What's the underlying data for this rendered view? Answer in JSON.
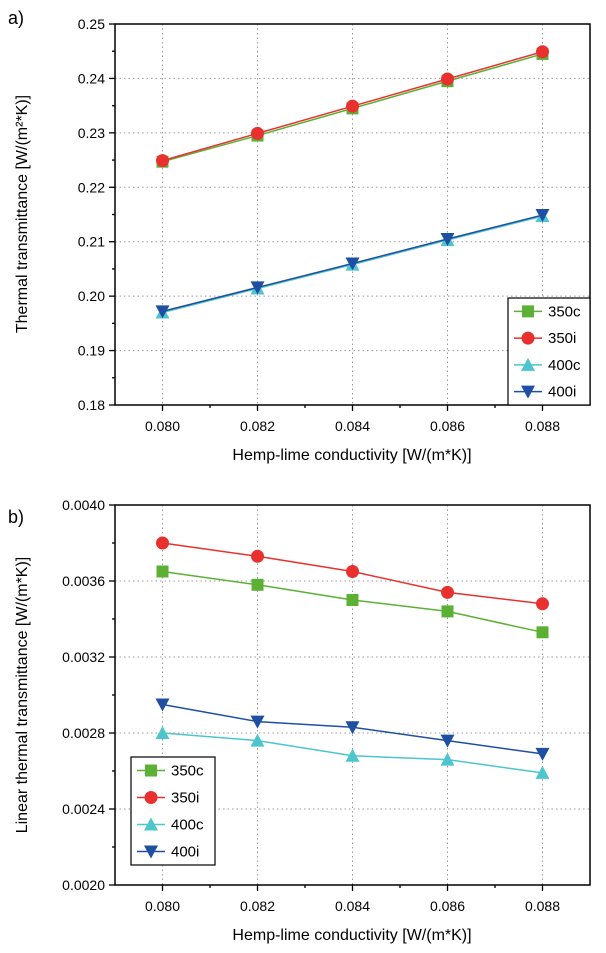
{
  "chart_data": [
    {
      "type": "line",
      "panel_label": "a)",
      "xlabel": "Hemp-lime conductivity [W/(m*K)]",
      "ylabel": "Thermal transmittance [W/(m²*K)]",
      "xlim": [
        0.079,
        0.089
      ],
      "ylim": [
        0.18,
        0.25
      ],
      "grid": true,
      "legend_position": "bottom-right",
      "x": [
        0.08,
        0.082,
        0.084,
        0.086,
        0.088
      ],
      "xticks": [
        0.08,
        0.082,
        0.084,
        0.086,
        0.088
      ],
      "xtick_labels": [
        "0.080",
        "0.082",
        "0.084",
        "0.086",
        "0.088"
      ],
      "yticks": [
        0.18,
        0.19,
        0.2,
        0.21,
        0.22,
        0.23,
        0.24,
        0.25
      ],
      "ytick_labels": [
        "0.18",
        "0.19",
        "0.20",
        "0.21",
        "0.22",
        "0.23",
        "0.24",
        "0.25"
      ],
      "series": [
        {
          "name": "350c",
          "color": "#5cb135",
          "marker": "square",
          "values": [
            0.2247,
            0.2295,
            0.2345,
            0.2395,
            0.2445
          ]
        },
        {
          "name": "350i",
          "color": "#e8312f",
          "marker": "circle",
          "values": [
            0.2249,
            0.2299,
            0.2349,
            0.2399,
            0.2449
          ]
        },
        {
          "name": "400c",
          "color": "#4cc6cc",
          "marker": "triangle-up",
          "values": [
            0.197,
            0.2014,
            0.2058,
            0.2103,
            0.2147
          ]
        },
        {
          "name": "400i",
          "color": "#1f4fa3",
          "marker": "triangle-down",
          "values": [
            0.1972,
            0.2016,
            0.206,
            0.2105,
            0.2149
          ]
        }
      ]
    },
    {
      "type": "line",
      "panel_label": "b)",
      "xlabel": "Hemp-lime conductivity [W/(m*K)]",
      "ylabel": "Linear thermal transmittance [W/(m*K)]",
      "xlim": [
        0.079,
        0.089
      ],
      "ylim": [
        0.002,
        0.004
      ],
      "grid": true,
      "legend_position": "bottom-left",
      "x": [
        0.08,
        0.082,
        0.084,
        0.086,
        0.088
      ],
      "xticks": [
        0.08,
        0.082,
        0.084,
        0.086,
        0.088
      ],
      "xtick_labels": [
        "0.080",
        "0.082",
        "0.084",
        "0.086",
        "0.088"
      ],
      "yticks": [
        0.002,
        0.0024,
        0.0028,
        0.0032,
        0.0036,
        0.004
      ],
      "ytick_labels": [
        "0.0020",
        "0.0024",
        "0.0028",
        "0.0032",
        "0.0036",
        "0.0040"
      ],
      "series": [
        {
          "name": "350c",
          "color": "#5cb135",
          "marker": "square",
          "values": [
            0.00365,
            0.00358,
            0.0035,
            0.00344,
            0.00333
          ]
        },
        {
          "name": "350i",
          "color": "#e8312f",
          "marker": "circle",
          "values": [
            0.0038,
            0.00373,
            0.00365,
            0.00354,
            0.00348
          ]
        },
        {
          "name": "400c",
          "color": "#4cc6cc",
          "marker": "triangle-up",
          "values": [
            0.0028,
            0.00276,
            0.00268,
            0.00266,
            0.00259
          ]
        },
        {
          "name": "400i",
          "color": "#1f4fa3",
          "marker": "triangle-down",
          "values": [
            0.00295,
            0.00286,
            0.00283,
            0.00276,
            0.00269
          ]
        }
      ]
    }
  ]
}
